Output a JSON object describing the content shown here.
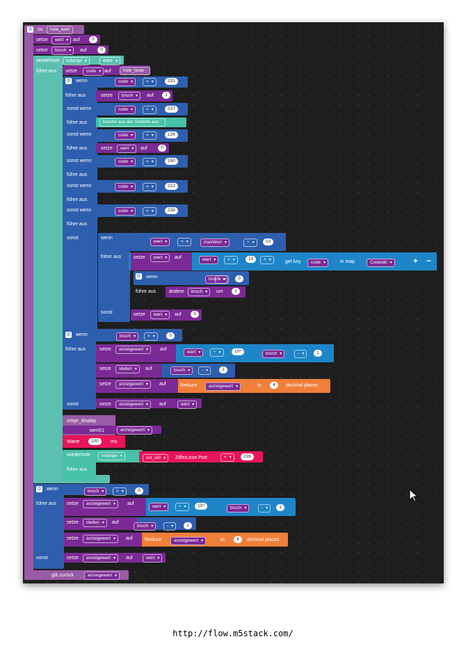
{
  "url": "http://flow.m5stack.com/",
  "colors": {
    "workspace": "#1e1e1e",
    "func": "#995ba5",
    "logic": "#2e5fae",
    "loop": "#5bc0b0",
    "math": "#1e86c8",
    "var": "#7b2a95",
    "text": "#47c1a8",
    "orange": "#f07f3a",
    "red": "#e8155a"
  },
  "fn": {
    "zu": "zu",
    "name": "hole_wert",
    "return": "gib zurück",
    "return_var": "anzeigewert"
  },
  "w": {
    "setze": "setze",
    "auf": "auf",
    "wenn": "wenn",
    "fuehre": "führe aus",
    "sonstwenn": "sonst wenn",
    "sonst": "sonst",
    "aendere": "ändere",
    "um": "um",
    "repeat": "wiederhole",
    "solange": "solange",
    "wahr": "wahr",
    "getkey": "get key",
    "inmap": "in map",
    "reduce": "Reduce",
    "to": "to",
    "decimal": "decimal places",
    "show": "zeige_display",
    "wert01": "wert01",
    "warte": "Warte",
    "ms": "ms",
    "ziffer": "ZifferLese Port",
    "breakout": "breche aus der Schleife aus"
  },
  "v": {
    "wert": "wert",
    "bruch": "bruch",
    "code": "code",
    "anzeigewert": "anzeigewert",
    "stellen": "stellen",
    "maxWert": "maxWert",
    "Codetab": "Codetab",
    "ext": "ext_io0",
    "hole_taste": "hole_taste"
  },
  "op": {
    "eq": "=",
    "lt": "<",
    "gt": ">",
    "plus": "+",
    "minus": "-",
    "times": "×",
    "pow": "10^",
    "div": "÷"
  },
  "n": {
    "0": "0",
    "1": "1",
    "10": "10",
    "100": "100",
    "126": "126",
    "190": "190",
    "222": "222",
    "231": "231",
    "237": "237",
    "238": "238",
    "239": "239",
    "4": "4"
  }
}
